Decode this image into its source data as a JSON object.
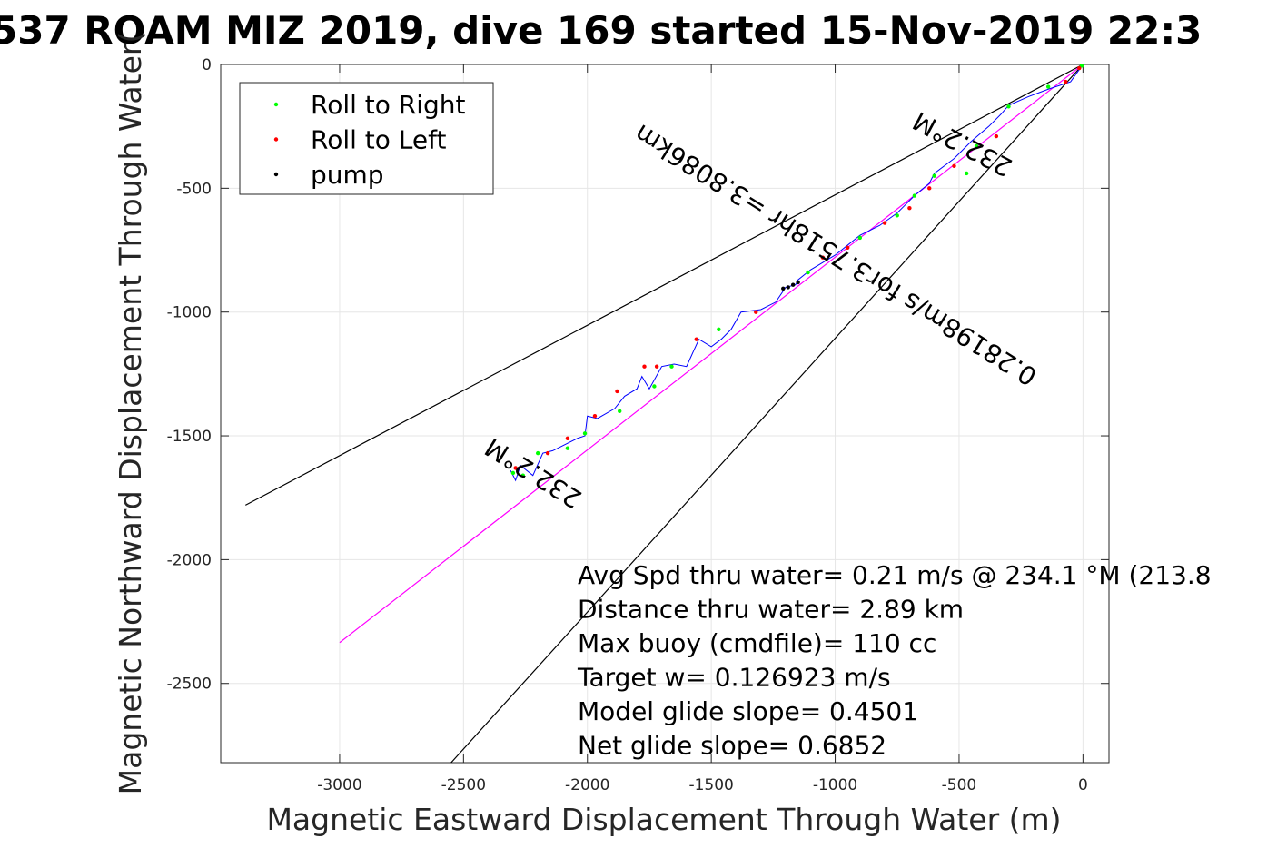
{
  "chart_data": {
    "type": "line",
    "title": "537 ROAM MIZ 2019, dive 169 started 15-Nov-2019 22:3",
    "xlabel": "Magnetic Eastward Displacement Through Water (m)",
    "ylabel": "Magnetic Northward Displacement Through Water(",
    "xlim": [
      -3480,
      105
    ],
    "ylim": [
      -2820,
      0
    ],
    "xticks": [
      -3000,
      -2500,
      -2000,
      -1500,
      -1000,
      -500,
      0
    ],
    "xtick_labels": [
      "-3000",
      "-2500",
      "-2000",
      "-1500",
      "-1000",
      "-500",
      "0"
    ],
    "yticks": [
      0,
      -500,
      -1000,
      -1500,
      -2000,
      -2500
    ],
    "ytick_labels": [
      "0",
      "-500",
      "-1000",
      "-1500",
      "-2000",
      "-2500"
    ],
    "grid": true,
    "legend_position": "top-left",
    "legend": [
      {
        "label": "Roll to Right",
        "color": "#00ff00"
      },
      {
        "label": "Roll to Left",
        "color": "#ff0000"
      },
      {
        "label": "pump",
        "color": "#000000"
      }
    ],
    "lines": [
      {
        "color": "#000000",
        "x": [
          0,
          -3380
        ],
        "y": [
          0,
          -1780
        ]
      },
      {
        "color": "#000000",
        "x": [
          0,
          -2550
        ],
        "y": [
          0,
          -2820
        ]
      },
      {
        "color": "#ff00ff",
        "x": [
          0,
          -3000
        ],
        "y": [
          0,
          -2335
        ]
      }
    ],
    "track": {
      "color": "#0000ff",
      "x": [
        0,
        -50,
        -140,
        -220,
        -300,
        -330,
        -380,
        -450,
        -520,
        -600,
        -620,
        -680,
        -720,
        -750,
        -820,
        -900,
        -950,
        -1000,
        -1100,
        -1150,
        -1160,
        -1200,
        -1240,
        -1300,
        -1380,
        -1420,
        -1460,
        -1500,
        -1550,
        -1600,
        -1650,
        -1700,
        -1750,
        -1780,
        -1800,
        -1850,
        -1890,
        -1960,
        -2000,
        -2010,
        -2040,
        -2100,
        -2140,
        -2180,
        -2220,
        -2270,
        -2290,
        -2310
      ],
      "y": [
        0,
        -70,
        -100,
        -130,
        -165,
        -200,
        -250,
        -310,
        -380,
        -440,
        -480,
        -530,
        -570,
        -600,
        -650,
        -690,
        -730,
        -770,
        -830,
        -870,
        -890,
        -900,
        -960,
        -990,
        -1000,
        -1070,
        -1110,
        -1140,
        -1110,
        -1220,
        -1210,
        -1220,
        -1310,
        -1260,
        -1310,
        -1340,
        -1390,
        -1430,
        -1420,
        -1500,
        -1510,
        -1540,
        -1560,
        -1570,
        -1660,
        -1620,
        -1680,
        -1640
      ]
    },
    "roll_right_points": {
      "x": [
        -5,
        -140,
        -300,
        -430,
        -470,
        -600,
        -680,
        -750,
        -900,
        -1110,
        -1470,
        -1660,
        -1730,
        -1870,
        -2010,
        -2080,
        -2200,
        -2260,
        -2300
      ],
      "y": [
        -5,
        -90,
        -170,
        -330,
        -440,
        -450,
        -530,
        -610,
        -700,
        -840,
        -1070,
        -1220,
        -1300,
        -1400,
        -1490,
        -1550,
        -1570,
        -1660,
        -1650
      ]
    },
    "roll_left_points": {
      "x": [
        -15,
        -70,
        -350,
        -520,
        -620,
        -700,
        -800,
        -950,
        -1050,
        -1320,
        -1560,
        -1720,
        -1770,
        -1880,
        -1970,
        -2080,
        -2160,
        -2290
      ],
      "y": [
        -15,
        -70,
        -290,
        -410,
        -500,
        -580,
        -640,
        -740,
        -780,
        -1000,
        -1110,
        -1220,
        -1220,
        -1320,
        -1420,
        -1510,
        -1570,
        -1630
      ]
    },
    "pump_points": {
      "x": [
        -1150,
        -1170,
        -1190,
        -1210
      ],
      "y": [
        -880,
        -890,
        -900,
        -905
      ]
    },
    "annotations": [
      {
        "text": "232.2°M",
        "x": -470,
        "y": -290,
        "rotate": 208
      },
      {
        "text": "0.28198m/s for3.7518hr =3.8086km",
        "x": -980,
        "y": -740,
        "rotate": 212
      },
      {
        "text": "232.2°M",
        "x": -2200,
        "y": -1620,
        "rotate": 212
      }
    ],
    "stats": [
      "Avg Spd thru water=  0.21 m/s @ 234.1 °M (213.8",
      "Distance thru water=  2.89 km",
      "Max buoy (cmdfile)= 110 cc",
      "Target w= 0.126923 m/s",
      "Model glide slope= 0.4501",
      "Net glide slope= 0.6852"
    ]
  }
}
